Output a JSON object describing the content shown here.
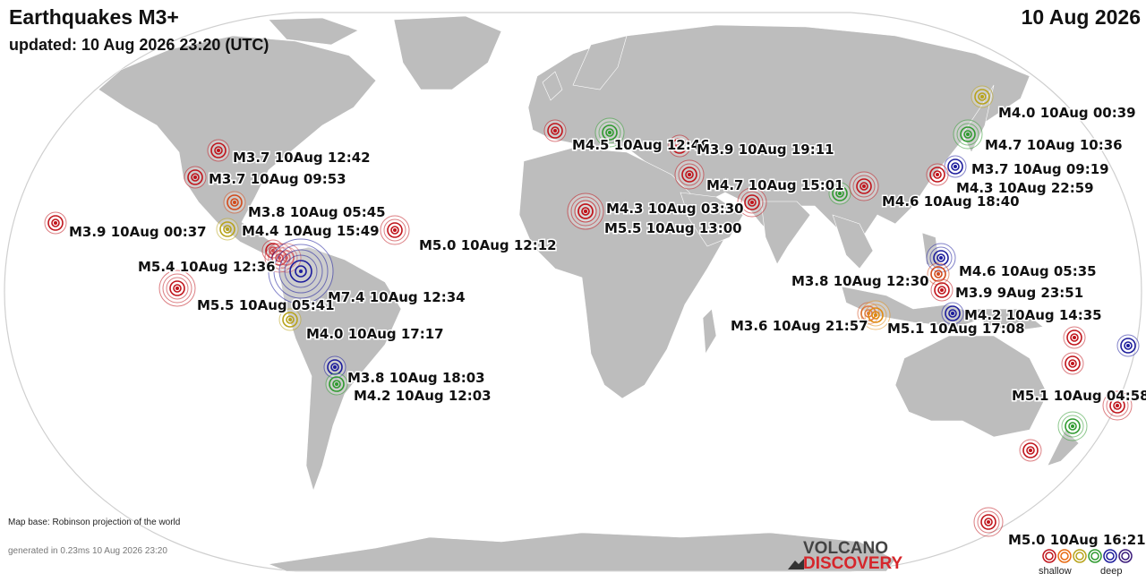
{
  "header": {
    "title": "Earthquakes M3+",
    "updated": "updated: 10 Aug 2026 23:20 (UTC)",
    "date": "10 Aug 2026"
  },
  "footer": {
    "map_base": "Map base: Robinson projection of the world",
    "generated": "generated in 0.23ms 10 Aug 2026 23:20",
    "logo_top": "VOLCANO",
    "logo_bottom": "DISCOVERY",
    "legend_shallow": "shallow",
    "legend_deep": "deep"
  },
  "colors": {
    "ocean": "#ffffff",
    "land": "#bdbdbd",
    "shallow": "#c0141b",
    "intermediate_1": "#e86a10",
    "intermediate_2": "#b8a31a",
    "intermediate_3": "#2f9a2f",
    "deep": "#1c1c9c",
    "deepest": "#3a1a7a"
  },
  "quakes": [
    {
      "label": "M3.7 10Aug 12:42",
      "color": "#c0141b",
      "mag": 3.7
    },
    {
      "label": "M3.7 10Aug 09:53",
      "color": "#c0141b",
      "mag": 3.7
    },
    {
      "label": "M3.8 10Aug 05:45",
      "color": "#d24a1a",
      "mag": 3.8
    },
    {
      "label": "M3.9 10Aug 00:37",
      "color": "#c0141b",
      "mag": 3.9
    },
    {
      "label": "M4.4 10Aug 15:49",
      "color": "#b8a31a",
      "mag": 4.4
    },
    {
      "label": "M5.0 10Aug 12:12",
      "color": "#c0141b",
      "mag": 5.0
    },
    {
      "label": "M5.4 10Aug 12:36",
      "color": "#c0141b",
      "mag": 5.4
    },
    {
      "label": "M7.4 10Aug 12:34",
      "color": "#1c1c9c",
      "mag": 7.4
    },
    {
      "label": "M5.5 10Aug 05:41",
      "color": "#c0141b",
      "mag": 5.5
    },
    {
      "label": "M4.0 10Aug 17:17",
      "color": "#b8a31a",
      "mag": 4.0
    },
    {
      "label": "M3.8 10Aug 18:03",
      "color": "#1c1c9c",
      "mag": 3.8
    },
    {
      "label": "M4.2 10Aug 12:03",
      "color": "#2f9a2f",
      "mag": 4.2
    },
    {
      "label": "M4.5 10Aug 12:46",
      "color": "#2f9a2f",
      "mag": 4.5
    },
    {
      "label": "M3.9 10Aug 19:11",
      "color": "#c0141b",
      "mag": 3.9
    },
    {
      "label": "M4.7 10Aug 15:01",
      "color": "#c0141b",
      "mag": 4.7
    },
    {
      "label": "M4.3 10Aug 03:30",
      "color": "#c0141b",
      "mag": 4.3
    },
    {
      "label": "M5.5 10Aug 13:00",
      "color": "#c0141b",
      "mag": 5.5
    },
    {
      "label": "M4.6 10Aug 18:40",
      "color": "#c0141b",
      "mag": 4.6
    },
    {
      "label": "M4.0 10Aug 00:39",
      "color": "#b8a31a",
      "mag": 4.0
    },
    {
      "label": "M4.7 10Aug 10:36",
      "color": "#2f9a2f",
      "mag": 4.7
    },
    {
      "label": "M3.7 10Aug 09:19",
      "color": "#1c1c9c",
      "mag": 3.7
    },
    {
      "label": "M4.3 10Aug 22:59",
      "color": "#c0141b",
      "mag": 4.3
    },
    {
      "label": "M4.6 10Aug 05:35",
      "color": "#1c1c9c",
      "mag": 4.6
    },
    {
      "label": "M3.8 10Aug 12:30",
      "color": "#d24a1a",
      "mag": 3.8
    },
    {
      "label": "M3.9 9Aug 23:51",
      "color": "#c0141b",
      "mag": 3.9
    },
    {
      "label": "M4.2 10Aug 14:35",
      "color": "#1c1c9c",
      "mag": 4.2
    },
    {
      "label": "M3.6 10Aug 21:57",
      "color": "#d24a1a",
      "mag": 3.6
    },
    {
      "label": "M5.1 10Aug 17:08",
      "color": "#e08a10",
      "mag": 5.1
    },
    {
      "label": "M5.1 10Aug 04:58",
      "color": "#c0141b",
      "mag": 5.1
    },
    {
      "label": "M5.0 10Aug 16:21",
      "color": "#c0141b",
      "mag": 5.0
    }
  ],
  "unlabeled_quakes": [
    {
      "color": "#c0141b",
      "mag": 4.1
    },
    {
      "color": "#c0141b",
      "mag": 4.6
    },
    {
      "color": "#2f9a2f",
      "mag": 4.0
    },
    {
      "color": "#c0141b",
      "mag": 4.0
    },
    {
      "color": "#c0141b",
      "mag": 4.2
    },
    {
      "color": "#1c1c9c",
      "mag": 4.3
    },
    {
      "color": "#c0141b",
      "mag": 4.4
    },
    {
      "color": "#c0141b",
      "mag": 4.6
    },
    {
      "color": "#2f9a2f",
      "mag": 4.5
    },
    {
      "color": "#c0141b",
      "mag": 4.0
    }
  ]
}
